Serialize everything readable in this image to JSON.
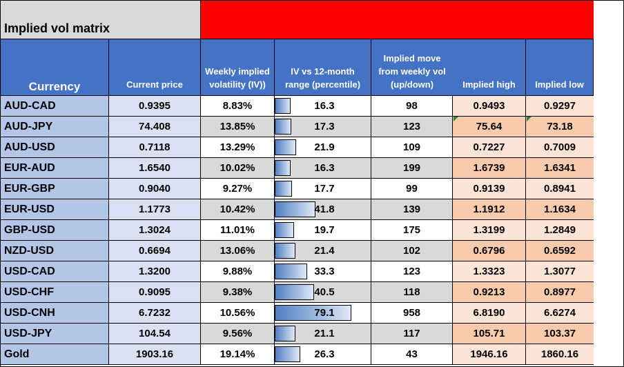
{
  "title": "Implied vol matrix",
  "headers": {
    "currency": "Currency",
    "price": "Current price",
    "weekly_vol": [
      "Weekly implied",
      "volatility (IV))"
    ],
    "percentile": [
      "IV vs  12-month",
      "range (percentile)"
    ],
    "move": [
      "Implied move",
      "from weekly vol",
      "(up/down)"
    ],
    "high": "Implied high",
    "low": "Implied low"
  },
  "rows": [
    {
      "name": "AUD-CAD",
      "price": "0.9395",
      "vol": "8.83%",
      "pct": "16.3",
      "move": "98",
      "high": "0.9493",
      "low": "0.9297"
    },
    {
      "name": "AUD-JPY",
      "price": "74.408",
      "vol": "13.85%",
      "pct": "17.3",
      "move": "123",
      "high": "75.64",
      "low": "73.18"
    },
    {
      "name": "AUD-USD",
      "price": "0.7118",
      "vol": "13.29%",
      "pct": "21.9",
      "move": "109",
      "high": "0.7227",
      "low": "0.7009"
    },
    {
      "name": "EUR-AUD",
      "price": "1.6540",
      "vol": "10.02%",
      "pct": "16.3",
      "move": "199",
      "high": "1.6739",
      "low": "1.6341"
    },
    {
      "name": "EUR-GBP",
      "price": "0.9040",
      "vol": "9.27%",
      "pct": "17.7",
      "move": "99",
      "high": "0.9139",
      "low": "0.8941"
    },
    {
      "name": "EUR-USD",
      "price": "1.1773",
      "vol": "10.42%",
      "pct": "41.8",
      "move": "139",
      "high": "1.1912",
      "low": "1.1634"
    },
    {
      "name": "GBP-USD",
      "price": "1.3024",
      "vol": "11.01%",
      "pct": "19.7",
      "move": "175",
      "high": "1.3199",
      "low": "1.2849"
    },
    {
      "name": "NZD-USD",
      "price": "0.6694",
      "vol": "13.06%",
      "pct": "21.4",
      "move": "102",
      "high": "0.6796",
      "low": "0.6592"
    },
    {
      "name": "USD-CAD",
      "price": "1.3200",
      "vol": "9.88%",
      "pct": "33.3",
      "move": "123",
      "high": "1.3323",
      "low": "1.3077"
    },
    {
      "name": "USD-CHF",
      "price": "0.9095",
      "vol": "9.38%",
      "pct": "40.5",
      "move": "118",
      "high": "0.9213",
      "low": "0.8977"
    },
    {
      "name": "USD-CNH",
      "price": "6.7232",
      "vol": "10.56%",
      "pct": "79.1",
      "move": "958",
      "high": "6.8190",
      "low": "6.6274"
    },
    {
      "name": "USD-JPY",
      "price": "104.54",
      "vol": "9.56%",
      "pct": "21.1",
      "move": "117",
      "high": "105.71",
      "low": "103.37"
    },
    {
      "name": "Gold",
      "price": "1903.16",
      "vol": "19.14%",
      "pct": "26.3",
      "move": "43",
      "high": "1946.16",
      "low": "1860.16"
    }
  ]
}
